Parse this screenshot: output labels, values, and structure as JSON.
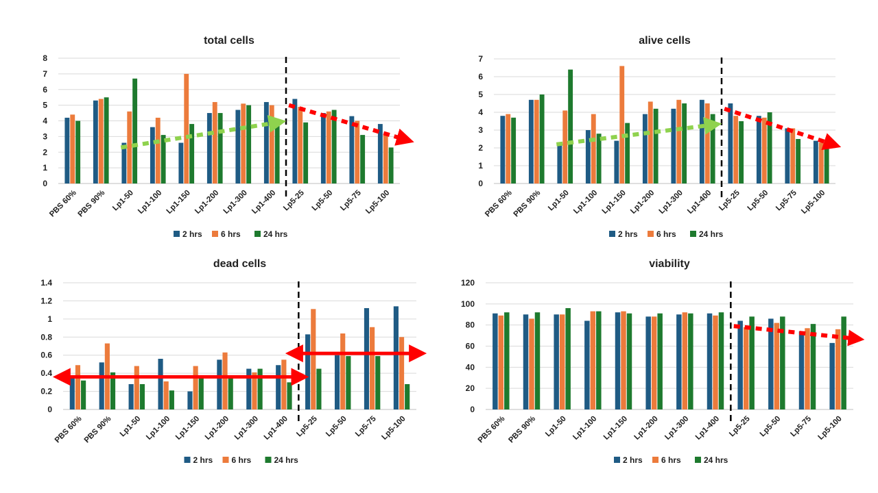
{
  "colors": {
    "s2": "#1f5b84",
    "s6": "#ec7b3c",
    "s24": "#1e7a2e",
    "green_arrow": "#8fd24e",
    "red_arrow": "#ff0000",
    "divider": "#000000"
  },
  "chart_data": [
    {
      "id": "total",
      "type": "bar",
      "title": "total cells",
      "categories": [
        "PBS 60%",
        "PBS 90%",
        "Lp1-50",
        "Lp1-100",
        "Lp1-150",
        "Lp1-200",
        "Lp1-300",
        "Lp1-400",
        "Lp5-25",
        "Lp5-50",
        "Lp5-75",
        "Lp5-100"
      ],
      "ylim": [
        0,
        8
      ],
      "yticks": [
        "0",
        "1",
        "2",
        "3",
        "4",
        "5",
        "6",
        "7",
        "8"
      ],
      "series": [
        {
          "name": "2 hrs",
          "values": [
            4.2,
            5.3,
            2.6,
            3.6,
            2.6,
            4.5,
            4.7,
            5.2,
            5.4,
            4.5,
            4.3,
            3.8
          ]
        },
        {
          "name": "6 hrs",
          "values": [
            4.4,
            5.4,
            4.6,
            4.2,
            7.0,
            5.2,
            5.1,
            5.0,
            4.9,
            4.6,
            4.0,
            3.1
          ]
        },
        {
          "name": "24 hrs",
          "values": [
            4.0,
            5.5,
            6.7,
            3.1,
            3.8,
            4.5,
            5.0,
            4.1,
            3.9,
            4.7,
            3.1,
            2.3
          ]
        }
      ],
      "legend": [
        "2 hrs",
        "6 hrs",
        "24 hrs"
      ]
    },
    {
      "id": "alive",
      "type": "bar",
      "title": "alive cells",
      "categories": [
        "PBS 60%",
        "PBS 90%",
        "Lp1-50",
        "Lp1-100",
        "Lp1-150",
        "Lp1-200",
        "Lp1-300",
        "Lp1-400",
        "Lp5-25",
        "Lp5-50",
        "Lp5-75",
        "Lp5-100"
      ],
      "ylim": [
        0,
        7
      ],
      "yticks": [
        "0",
        "1",
        "2",
        "3",
        "4",
        "5",
        "6",
        "7"
      ],
      "series": [
        {
          "name": "2 hrs",
          "values": [
            3.8,
            4.7,
            2.3,
            3.0,
            2.4,
            3.9,
            4.2,
            4.7,
            4.5,
            3.8,
            3.1,
            2.4
          ]
        },
        {
          "name": "6 hrs",
          "values": [
            3.9,
            4.7,
            4.1,
            3.9,
            6.6,
            4.6,
            4.7,
            4.5,
            3.8,
            3.7,
            3.1,
            2.3
          ]
        },
        {
          "name": "24 hrs",
          "values": [
            3.7,
            5.0,
            6.4,
            2.8,
            3.4,
            4.2,
            4.5,
            3.9,
            3.5,
            4.0,
            2.5,
            2.1
          ]
        }
      ],
      "legend": [
        "2 hrs",
        "6 hrs",
        "24 hrs"
      ]
    },
    {
      "id": "dead",
      "type": "bar",
      "title": "dead cells",
      "categories": [
        "PBS 60%",
        "PBS 90%",
        "Lp1-50",
        "Lp1-100",
        "Lp1-150",
        "Lp1-200",
        "Lp1-300",
        "Lp1-400",
        "Lp5-25",
        "Lp5-50",
        "Lp5-75",
        "Lp5-100"
      ],
      "ylim": [
        0,
        1.4
      ],
      "yticks": [
        "0",
        "0.2",
        "0.4",
        "0.6",
        "0.8",
        "1",
        "1.2",
        "1.4"
      ],
      "series": [
        {
          "name": "2 hrs",
          "values": [
            0.35,
            0.52,
            0.28,
            0.56,
            0.2,
            0.55,
            0.45,
            0.49,
            0.83,
            0.6,
            1.12,
            1.14
          ]
        },
        {
          "name": "6 hrs",
          "values": [
            0.49,
            0.73,
            0.48,
            0.31,
            0.48,
            0.63,
            0.41,
            0.55,
            1.11,
            0.84,
            0.91,
            0.8
          ]
        },
        {
          "name": "24 hrs",
          "values": [
            0.32,
            0.41,
            0.28,
            0.21,
            0.36,
            0.36,
            0.45,
            0.3,
            0.45,
            0.59,
            0.59,
            0.28
          ]
        }
      ],
      "legend": [
        "2 hrs",
        "6 hrs",
        "24 hrs"
      ]
    },
    {
      "id": "viability",
      "type": "bar",
      "title": "viability",
      "categories": [
        "PBS 60%",
        "PBS 90%",
        "Lp1-50",
        "Lp1-100",
        "Lp1-150",
        "Lp1-200",
        "Lp1-300",
        "Lp1-400",
        "Lp5-25",
        "Lp5-50",
        "Lp5-75",
        "Lp5-100"
      ],
      "ylim": [
        0,
        120
      ],
      "yticks": [
        "0",
        "20",
        "40",
        "60",
        "80",
        "100",
        "120"
      ],
      "series": [
        {
          "name": "2 hrs",
          "values": [
            91,
            90,
            90,
            84,
            92,
            88,
            90,
            91,
            84,
            86,
            74,
            63
          ]
        },
        {
          "name": "6 hrs",
          "values": [
            89,
            86,
            90,
            93,
            93,
            88,
            92,
            89,
            78,
            82,
            77,
            76
          ]
        },
        {
          "name": "24 hrs",
          "values": [
            92,
            92,
            96,
            93,
            91,
            91,
            91,
            92,
            88,
            88,
            81,
            88
          ]
        }
      ],
      "legend": [
        "2 hrs",
        "6 hrs",
        "24 hrs"
      ]
    }
  ]
}
